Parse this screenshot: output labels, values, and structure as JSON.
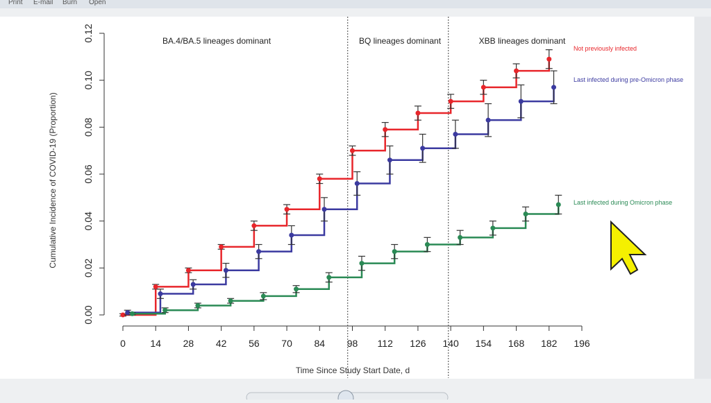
{
  "toolbar": [
    "Print",
    "E-mail",
    "Burn",
    "Open"
  ],
  "chart_data": {
    "type": "line",
    "x_label": "Time Since Study Start Date, d",
    "y_label": "Cumulative Incidence of COVID-19 (Proportion)",
    "xlim": [
      0,
      196
    ],
    "xticks": [
      0,
      14,
      28,
      42,
      56,
      70,
      84,
      98,
      112,
      126,
      140,
      154,
      168,
      182,
      196
    ],
    "ylim": [
      0,
      0.12
    ],
    "yticks": [
      {
        "value": 0,
        "label": "0.00"
      },
      {
        "value": 0.02,
        "label": "0.02"
      },
      {
        "value": 0.04,
        "label": "0.04"
      },
      {
        "value": 0.06,
        "label": "0.06"
      },
      {
        "value": 0.08,
        "label": "0.08"
      },
      {
        "value": 0.1,
        "label": "0.10"
      },
      {
        "value": 0.12,
        "label": "0.12"
      }
    ],
    "phase_boundaries": [
      96,
      139
    ],
    "annotations": [
      "BA.4/BA.5 lineages dominant",
      "BQ lineages dominant",
      "XBB lineages dominant"
    ],
    "series": [
      {
        "name": "Not previously infected",
        "color": "#e8262b",
        "x": [
          0,
          14,
          28,
          42,
          56,
          70,
          84,
          98,
          112,
          126,
          140,
          154,
          168,
          182
        ],
        "values": [
          0,
          0.012,
          0.019,
          0.029,
          0.038,
          0.045,
          0.058,
          0.07,
          0.079,
          0.086,
          0.091,
          0.097,
          0.104,
          0.109
        ],
        "errors": [
          0.0005,
          0.001,
          0.001,
          0.001,
          0.002,
          0.002,
          0.002,
          0.002,
          0.003,
          0.003,
          0.003,
          0.003,
          0.003,
          0.004
        ]
      },
      {
        "name": "Last infected during pre-Omicron phase",
        "color": "#3b3aa0",
        "x": [
          2,
          16,
          30,
          44,
          58,
          72,
          86,
          100,
          114,
          128,
          142,
          156,
          170,
          184
        ],
        "values": [
          0.001,
          0.009,
          0.013,
          0.019,
          0.027,
          0.034,
          0.045,
          0.056,
          0.066,
          0.071,
          0.077,
          0.083,
          0.091,
          0.097
        ],
        "errors": [
          0.001,
          0.002,
          0.002,
          0.003,
          0.003,
          0.004,
          0.005,
          0.005,
          0.006,
          0.006,
          0.006,
          0.007,
          0.007,
          0.007
        ]
      },
      {
        "name": "Last infected during Omicron phase",
        "color": "#2a8a55",
        "x": [
          4,
          18,
          32,
          46,
          60,
          74,
          88,
          102,
          116,
          130,
          144,
          158,
          172,
          186
        ],
        "values": [
          0.0005,
          0.002,
          0.004,
          0.006,
          0.008,
          0.011,
          0.016,
          0.022,
          0.027,
          0.03,
          0.033,
          0.037,
          0.043,
          0.047
        ],
        "errors": [
          0.0005,
          0.001,
          0.001,
          0.001,
          0.0015,
          0.0015,
          0.002,
          0.003,
          0.003,
          0.003,
          0.003,
          0.003,
          0.003,
          0.004
        ]
      }
    ]
  }
}
